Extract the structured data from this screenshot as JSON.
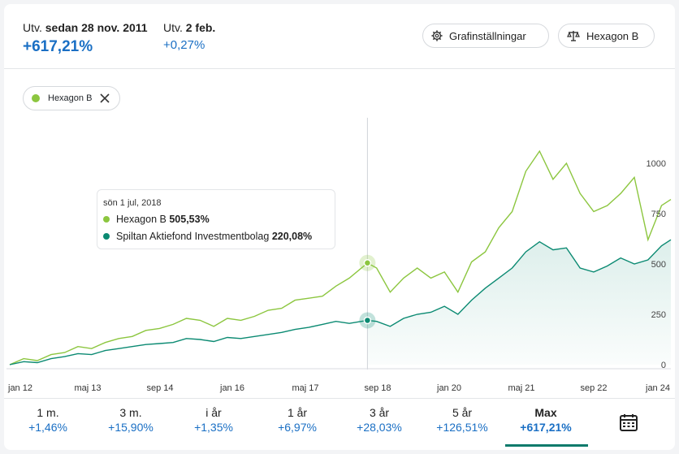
{
  "header": {
    "since_label_prefix": "Utv.",
    "since_label_date": "sedan 28 nov. 2011",
    "since_value": "+617,21%",
    "day_label_prefix": "Utv.",
    "day_label_date": "2 feb.",
    "day_value": "+0,27%",
    "settings_button": "Grafinställningar",
    "compare_button": "Hexagon B"
  },
  "chip": {
    "label": "Hexagon B"
  },
  "tooltip": {
    "date": "sön 1 jul, 2018",
    "rows": [
      {
        "name": "Hexagon B",
        "value": "505,53%"
      },
      {
        "name": "Spiltan Aktiefond Investmentbolag",
        "value": "220,08%"
      }
    ]
  },
  "tabs": [
    {
      "label": "1 m.",
      "value": "+1,46%"
    },
    {
      "label": "3 m.",
      "value": "+15,90%"
    },
    {
      "label": "i år",
      "value": "+1,35%"
    },
    {
      "label": "1 år",
      "value": "+6,97%"
    },
    {
      "label": "3 år",
      "value": "+28,03%"
    },
    {
      "label": "5 år",
      "value": "+126,51%"
    },
    {
      "label": "Max",
      "value": "+617,21%",
      "active": true
    }
  ],
  "colors": {
    "hexagon": "#8cc63f",
    "spiltan": "#0b8a72",
    "accent": "#1a6fc4"
  },
  "chart_data": {
    "type": "line",
    "y_ticks": [
      "0",
      "250",
      "500",
      "750",
      "1000"
    ],
    "ylim": [
      0,
      1100
    ],
    "x_ticks": [
      "jan 12",
      "maj 13",
      "sep 14",
      "jan 16",
      "maj 17",
      "sep 18",
      "jan 20",
      "maj 21",
      "sep 22",
      "jan 24"
    ],
    "highlight_date": "2018-07-01",
    "series": [
      {
        "name": "Hexagon B",
        "points": [
          [
            "2011-11-28",
            0
          ],
          [
            "2012-03-01",
            30
          ],
          [
            "2012-06-01",
            20
          ],
          [
            "2012-09-01",
            50
          ],
          [
            "2012-12-01",
            60
          ],
          [
            "2013-03-01",
            90
          ],
          [
            "2013-06-01",
            80
          ],
          [
            "2013-09-01",
            110
          ],
          [
            "2013-12-01",
            130
          ],
          [
            "2014-03-01",
            140
          ],
          [
            "2014-06-01",
            170
          ],
          [
            "2014-09-01",
            180
          ],
          [
            "2014-12-01",
            200
          ],
          [
            "2015-03-01",
            230
          ],
          [
            "2015-06-01",
            220
          ],
          [
            "2015-09-01",
            190
          ],
          [
            "2015-12-01",
            230
          ],
          [
            "2016-03-01",
            220
          ],
          [
            "2016-06-01",
            240
          ],
          [
            "2016-09-01",
            270
          ],
          [
            "2016-12-01",
            280
          ],
          [
            "2017-03-01",
            320
          ],
          [
            "2017-06-01",
            330
          ],
          [
            "2017-09-01",
            340
          ],
          [
            "2017-12-01",
            390
          ],
          [
            "2018-03-01",
            430
          ],
          [
            "2018-07-01",
            505
          ],
          [
            "2018-09-01",
            480
          ],
          [
            "2018-12-01",
            360
          ],
          [
            "2019-03-01",
            430
          ],
          [
            "2019-06-01",
            480
          ],
          [
            "2019-09-01",
            430
          ],
          [
            "2019-12-01",
            460
          ],
          [
            "2020-03-01",
            360
          ],
          [
            "2020-06-01",
            510
          ],
          [
            "2020-09-01",
            560
          ],
          [
            "2020-12-01",
            680
          ],
          [
            "2021-03-01",
            760
          ],
          [
            "2021-06-01",
            960
          ],
          [
            "2021-09-01",
            1060
          ],
          [
            "2021-12-01",
            920
          ],
          [
            "2022-03-01",
            1000
          ],
          [
            "2022-06-01",
            850
          ],
          [
            "2022-09-01",
            760
          ],
          [
            "2022-12-01",
            790
          ],
          [
            "2023-03-01",
            850
          ],
          [
            "2023-06-01",
            930
          ],
          [
            "2023-09-01",
            620
          ],
          [
            "2023-12-01",
            790
          ],
          [
            "2024-02-02",
            820
          ]
        ]
      },
      {
        "name": "Spiltan Aktiefond Investmentbolag",
        "points": [
          [
            "2011-11-28",
            0
          ],
          [
            "2012-03-01",
            15
          ],
          [
            "2012-06-01",
            10
          ],
          [
            "2012-09-01",
            30
          ],
          [
            "2012-12-01",
            40
          ],
          [
            "2013-03-01",
            55
          ],
          [
            "2013-06-01",
            50
          ],
          [
            "2013-09-01",
            70
          ],
          [
            "2013-12-01",
            80
          ],
          [
            "2014-03-01",
            90
          ],
          [
            "2014-06-01",
            100
          ],
          [
            "2014-09-01",
            105
          ],
          [
            "2014-12-01",
            110
          ],
          [
            "2015-03-01",
            130
          ],
          [
            "2015-06-01",
            125
          ],
          [
            "2015-09-01",
            115
          ],
          [
            "2015-12-01",
            135
          ],
          [
            "2016-03-01",
            130
          ],
          [
            "2016-06-01",
            140
          ],
          [
            "2016-09-01",
            150
          ],
          [
            "2016-12-01",
            160
          ],
          [
            "2017-03-01",
            175
          ],
          [
            "2017-06-01",
            185
          ],
          [
            "2017-09-01",
            200
          ],
          [
            "2017-12-01",
            215
          ],
          [
            "2018-03-01",
            205
          ],
          [
            "2018-07-01",
            220
          ],
          [
            "2018-09-01",
            215
          ],
          [
            "2018-12-01",
            190
          ],
          [
            "2019-03-01",
            230
          ],
          [
            "2019-06-01",
            250
          ],
          [
            "2019-09-01",
            260
          ],
          [
            "2019-12-01",
            290
          ],
          [
            "2020-03-01",
            250
          ],
          [
            "2020-06-01",
            320
          ],
          [
            "2020-09-01",
            380
          ],
          [
            "2020-12-01",
            430
          ],
          [
            "2021-03-01",
            480
          ],
          [
            "2021-06-01",
            560
          ],
          [
            "2021-09-01",
            610
          ],
          [
            "2021-12-01",
            570
          ],
          [
            "2022-03-01",
            580
          ],
          [
            "2022-06-01",
            480
          ],
          [
            "2022-09-01",
            460
          ],
          [
            "2022-12-01",
            490
          ],
          [
            "2023-03-01",
            530
          ],
          [
            "2023-06-01",
            500
          ],
          [
            "2023-09-01",
            520
          ],
          [
            "2023-12-01",
            590
          ],
          [
            "2024-02-02",
            620
          ]
        ]
      }
    ]
  }
}
